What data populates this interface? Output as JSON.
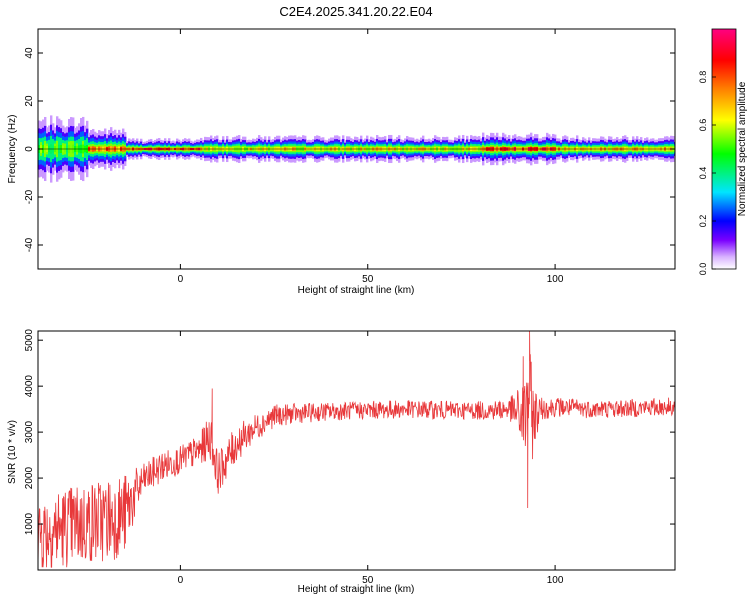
{
  "figure": {
    "title": "C2E4.2025.341.20.22.E04"
  },
  "colors": {
    "snr_line": "#e8383a",
    "axis": "#000000",
    "background": "#ffffff",
    "colorbar_stops": [
      "#ffffff",
      "#7a00ff",
      "#0000ff",
      "#00e5ff",
      "#00ff00",
      "#ffff00",
      "#ff8000",
      "#ff0000",
      "#ff0080"
    ]
  },
  "chart_data": [
    {
      "type": "heatmap",
      "name": "spectrogram",
      "title": "",
      "xlabel": "Height of straight line (km)",
      "ylabel": "Frequency (Hz)",
      "xlim": [
        -38,
        132
      ],
      "ylim": [
        -50,
        50
      ],
      "xticks": [
        0,
        50,
        100
      ],
      "yticks": [
        -40,
        -20,
        0,
        20,
        40
      ],
      "grid": false,
      "colorbar": {
        "label": "Normalized spectral amplitude",
        "range": [
          0,
          1
        ],
        "ticks": [
          0.0,
          0.2,
          0.4,
          0.6,
          0.8
        ]
      },
      "bands": [
        {
          "x": [
            -38,
            -25
          ],
          "freq_halfwidth_hz": 6,
          "peak_amplitude": 0.55
        },
        {
          "x": [
            -25,
            -15
          ],
          "freq_halfwidth_hz": 4,
          "peak_amplitude": 0.85
        },
        {
          "x": [
            -15,
            5
          ],
          "freq_halfwidth_hz": 2,
          "peak_amplitude": 0.9
        },
        {
          "x": [
            5,
            80
          ],
          "freq_halfwidth_hz": 2.5,
          "peak_amplitude": 0.7
        },
        {
          "x": [
            80,
            100
          ],
          "freq_halfwidth_hz": 3,
          "peak_amplitude": 0.9
        },
        {
          "x": [
            100,
            132
          ],
          "freq_halfwidth_hz": 2.5,
          "peak_amplitude": 0.75
        }
      ]
    },
    {
      "type": "line",
      "name": "snr",
      "title": "",
      "xlabel": "Height of straight line (km)",
      "ylabel": "SNR (10 * v/v)",
      "xlim": [
        -38,
        132
      ],
      "ylim": [
        0,
        5200
      ],
      "xticks": [
        0,
        50,
        100
      ],
      "yticks": [
        1000,
        2000,
        3000,
        4000,
        5000
      ],
      "grid": false,
      "trend": {
        "x": [
          -38,
          -30,
          -20,
          -15,
          -10,
          -5,
          0,
          5,
          8,
          10,
          15,
          20,
          25,
          30,
          40,
          50,
          60,
          70,
          80,
          88,
          92,
          93,
          94,
          96,
          100,
          110,
          120,
          132
        ],
        "y": [
          800,
          950,
          1100,
          1200,
          1950,
          2250,
          2400,
          2600,
          2900,
          2100,
          2750,
          3100,
          3350,
          3400,
          3450,
          3480,
          3500,
          3480,
          3470,
          3500,
          3300,
          3900,
          3300,
          3500,
          3550,
          3500,
          3520,
          3560
        ],
        "noise": [
          900,
          900,
          950,
          900,
          350,
          350,
          300,
          350,
          500,
          450,
          400,
          300,
          250,
          220,
          200,
          200,
          200,
          200,
          200,
          250,
          900,
          1200,
          900,
          250,
          220,
          200,
          200,
          200
        ]
      },
      "annotated_extremes": [
        {
          "x": 8.5,
          "y": 3950
        },
        {
          "x": 91.5,
          "y": 4650
        },
        {
          "x": 93.2,
          "y": 5200
        },
        {
          "x": 92.7,
          "y": 1350
        }
      ]
    }
  ]
}
